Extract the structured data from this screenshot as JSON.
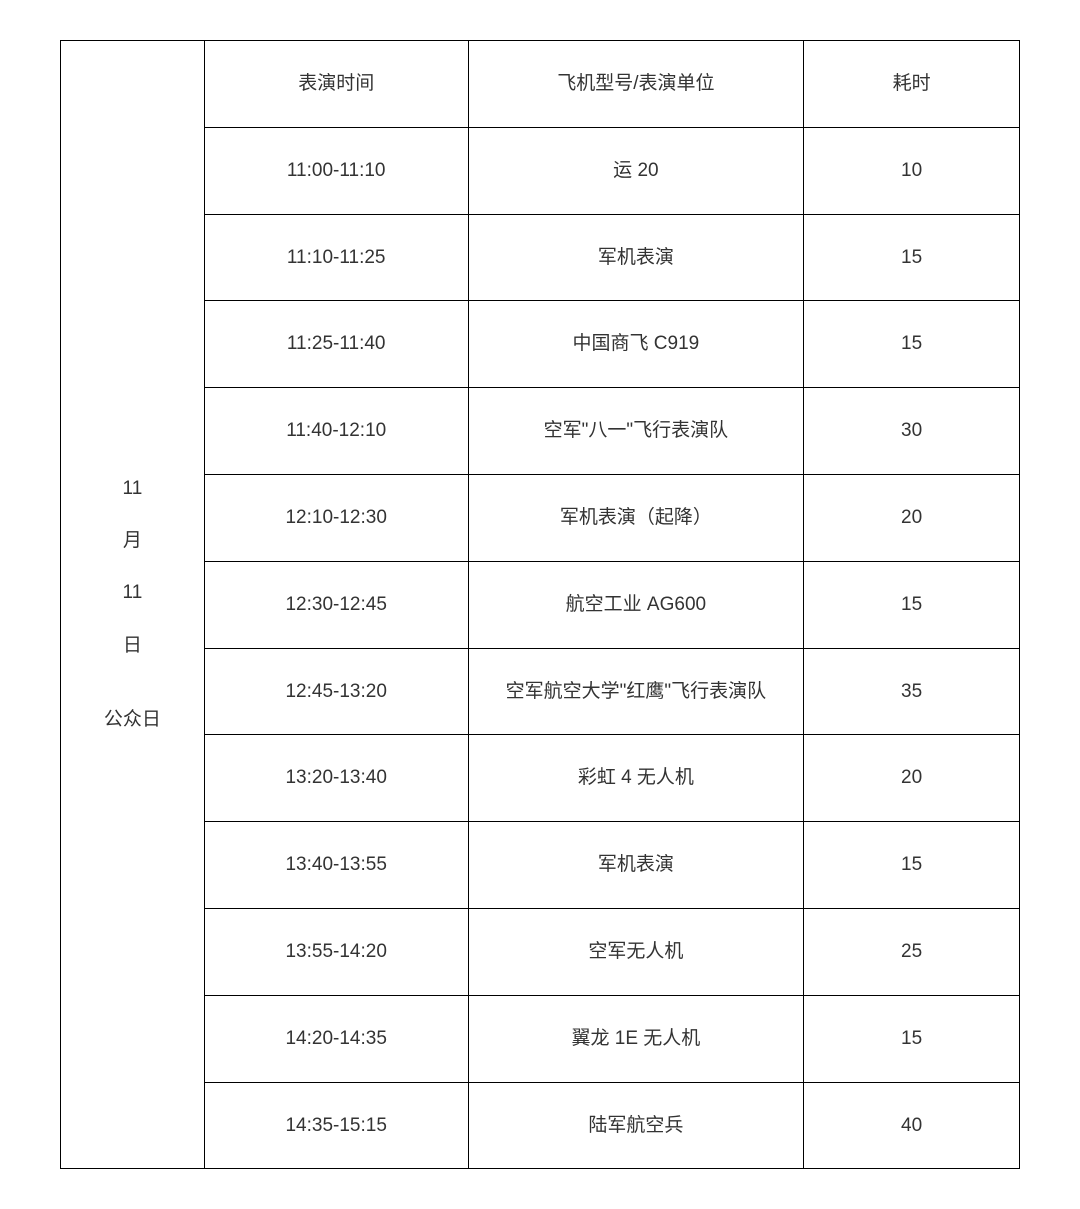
{
  "table": {
    "date_lines": [
      "11",
      "月",
      "11",
      "日",
      "",
      "公众日"
    ],
    "columns": [
      "表演时间",
      "飞机型号/表演单位",
      "耗时"
    ],
    "rows": [
      {
        "time": "11:00-11:10",
        "name": "运 20",
        "duration": "10"
      },
      {
        "time": "11:10-11:25",
        "name": "军机表演",
        "duration": "15"
      },
      {
        "time": "11:25-11:40",
        "name": "中国商飞 C919",
        "duration": "15"
      },
      {
        "time": "11:40-12:10",
        "name": "空军\"八一\"飞行表演队",
        "duration": "30"
      },
      {
        "time": "12:10-12:30",
        "name": "军机表演（起降）",
        "duration": "20"
      },
      {
        "time": "12:30-12:45",
        "name": "航空工业 AG600",
        "duration": "15"
      },
      {
        "time": "12:45-13:20",
        "name": "空军航空大学\"红鹰\"飞行表演队",
        "duration": "35"
      },
      {
        "time": "13:20-13:40",
        "name": "彩虹 4 无人机",
        "duration": "20"
      },
      {
        "time": "13:40-13:55",
        "name": "军机表演",
        "duration": "15"
      },
      {
        "time": "13:55-14:20",
        "name": "空军无人机",
        "duration": "25"
      },
      {
        "time": "14:20-14:35",
        "name": "翼龙 1E 无人机",
        "duration": "15"
      },
      {
        "time": "14:35-15:15",
        "name": "陆军航空兵",
        "duration": "40"
      }
    ],
    "colors": {
      "border": "#000000",
      "text": "#333333",
      "background": "#ffffff"
    },
    "fontsize": 19
  }
}
